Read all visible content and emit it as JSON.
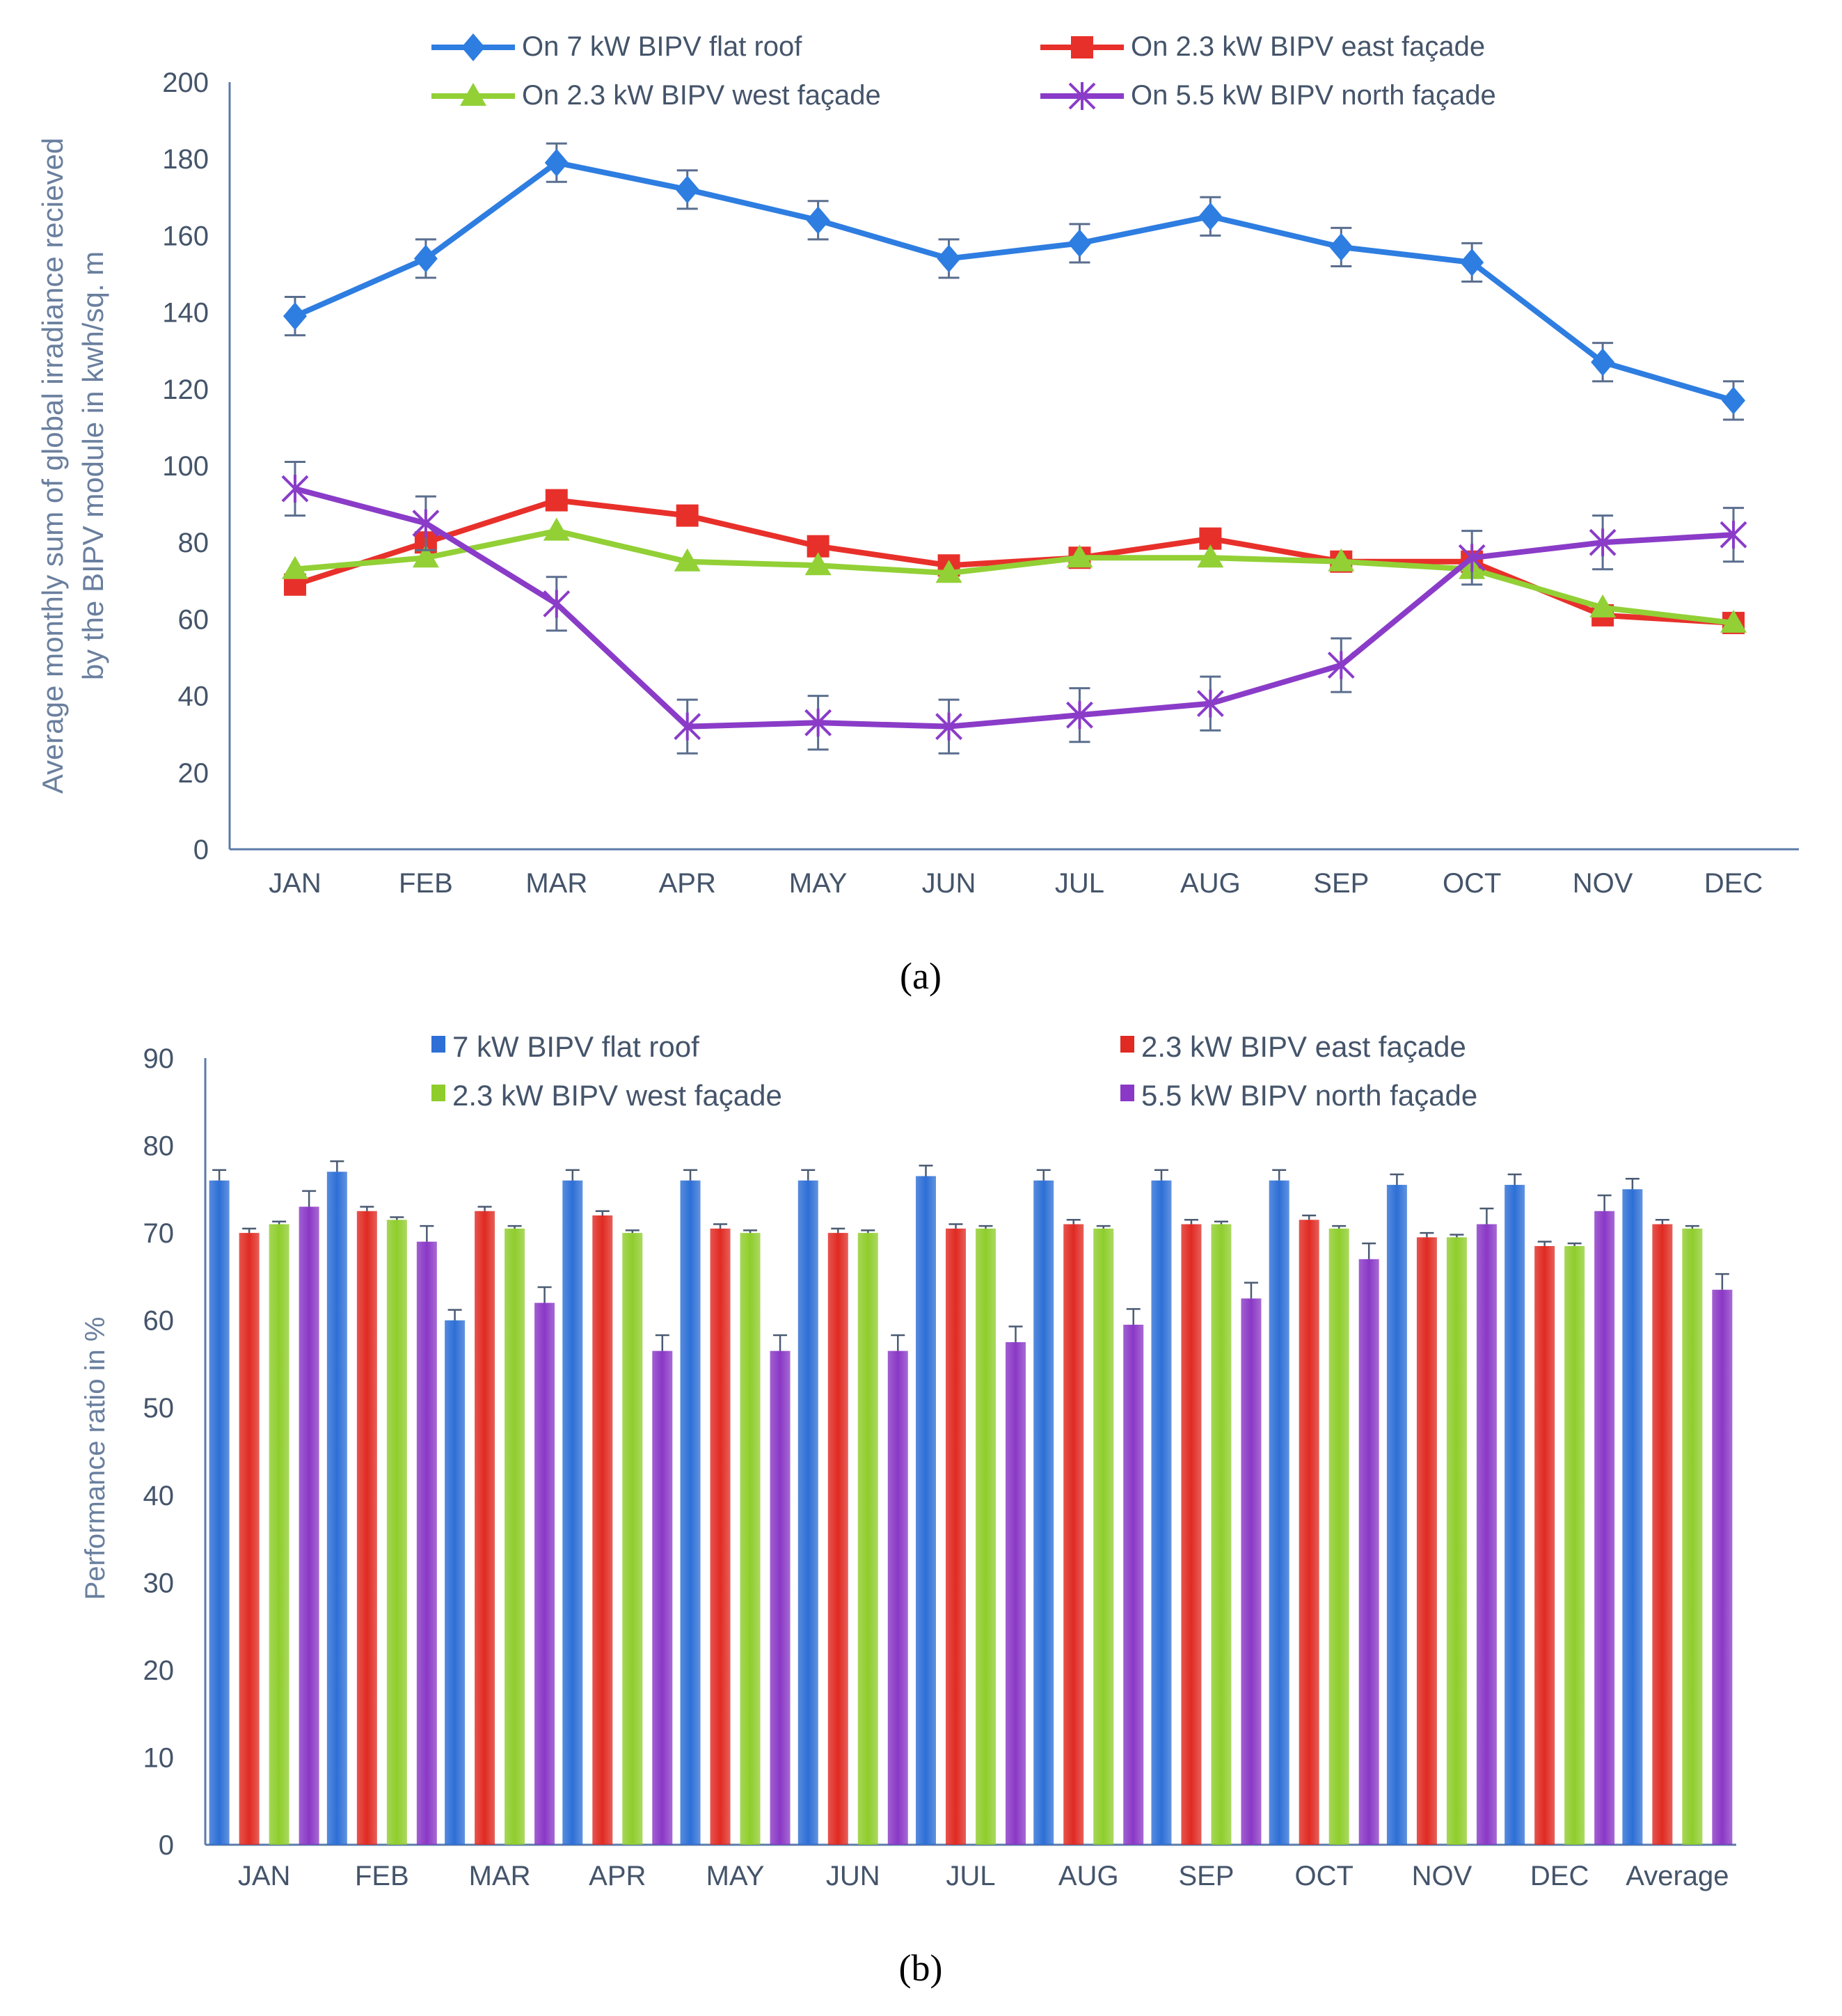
{
  "figure": {
    "panel_a_label": "(a)",
    "panel_b_label": "(b)"
  },
  "chart_data": [
    {
      "type": "line",
      "title": "",
      "xlabel": "",
      "ylabel": "Average monthly sum of global irradiance recieved by the BIPV module in kwh/sq. m",
      "ylabel_lines": [
        "Average monthly sum of global irradiance recieved",
        "by the BIPV module in kwh/sq. m"
      ],
      "ylim": [
        0,
        200
      ],
      "yticks": [
        0,
        20,
        40,
        60,
        80,
        100,
        120,
        140,
        160,
        180,
        200
      ],
      "categories": [
        "JAN",
        "FEB",
        "MAR",
        "APR",
        "MAY",
        "JUN",
        "JUL",
        "AUG",
        "SEP",
        "OCT",
        "NOV",
        "DEC"
      ],
      "grid": false,
      "legend_position": "top",
      "series": [
        {
          "name": "On 7 kW BIPV flat roof",
          "color": "#2e7de1",
          "marker": "diamond",
          "values": [
            139,
            154,
            179,
            172,
            164,
            154,
            158,
            165,
            157,
            153,
            127,
            117
          ],
          "error": [
            5,
            5,
            5,
            5,
            5,
            5,
            5,
            5,
            5,
            5,
            5,
            5
          ]
        },
        {
          "name": "On 2.3 kW BIPV east façade",
          "color": "#e8302b",
          "marker": "square",
          "values": [
            69,
            80,
            91,
            87,
            79,
            74,
            76,
            81,
            75,
            75,
            61,
            59
          ],
          "error": null
        },
        {
          "name": "On 2.3 kW BIPV west façade",
          "color": "#92d036",
          "marker": "triangle",
          "values": [
            73,
            76,
            83,
            75,
            74,
            72,
            76,
            76,
            75,
            73,
            63,
            59
          ],
          "error": null
        },
        {
          "name": "On 5.5 kW BIPV north façade",
          "color": "#8a3cc8",
          "marker": "x",
          "values": [
            94,
            85,
            64,
            32,
            33,
            32,
            35,
            38,
            48,
            76,
            80,
            82
          ],
          "error": [
            7,
            7,
            7,
            7,
            7,
            7,
            7,
            7,
            7,
            7,
            7,
            7
          ]
        }
      ]
    },
    {
      "type": "bar",
      "title": "",
      "xlabel": "",
      "ylabel": "Performance ratio in %",
      "ylim": [
        0,
        90
      ],
      "yticks": [
        0,
        10,
        20,
        30,
        40,
        50,
        60,
        70,
        80,
        90
      ],
      "categories": [
        "JAN",
        "FEB",
        "MAR",
        "APR",
        "MAY",
        "JUN",
        "JUL",
        "AUG",
        "SEP",
        "OCT",
        "NOV",
        "DEC",
        "Average"
      ],
      "grid": false,
      "legend_position": "top",
      "series": [
        {
          "name": "7 kW BIPV flat roof",
          "color": "#2d6fd6",
          "values": [
            76,
            77,
            60,
            76,
            76,
            76,
            76.5,
            76,
            76,
            76,
            75.5,
            75.5,
            75
          ],
          "error": [
            1.2,
            1.2,
            1.2,
            1.2,
            1.2,
            1.2,
            1.2,
            1.2,
            1.2,
            1.2,
            1.2,
            1.2,
            1.2
          ]
        },
        {
          "name": "2.3 kW BIPV east façade",
          "color": "#e02a22",
          "values": [
            70,
            72.5,
            72.5,
            72,
            70.5,
            70,
            70.5,
            71,
            71,
            71.5,
            69.5,
            68.5,
            71
          ],
          "error": [
            0.5,
            0.5,
            0.5,
            0.5,
            0.5,
            0.5,
            0.5,
            0.5,
            0.5,
            0.5,
            0.5,
            0.5,
            0.5
          ]
        },
        {
          "name": "2.3 kW BIPV west façade",
          "color": "#8fcd2c",
          "values": [
            71,
            71.5,
            70.5,
            70,
            70,
            70,
            70.5,
            70.5,
            71,
            70.5,
            69.5,
            68.5,
            70.5
          ],
          "error": [
            0.3,
            0.3,
            0.3,
            0.3,
            0.3,
            0.3,
            0.3,
            0.3,
            0.3,
            0.3,
            0.3,
            0.3,
            0.3
          ]
        },
        {
          "name": "5.5 kW BIPV north façade",
          "color": "#8a38c6",
          "values": [
            73,
            69,
            62,
            56.5,
            56.5,
            56.5,
            57.5,
            59.5,
            62.5,
            67,
            71,
            72.5,
            63.5
          ],
          "error": [
            1.8,
            1.8,
            1.8,
            1.8,
            1.8,
            1.8,
            1.8,
            1.8,
            1.8,
            1.8,
            1.8,
            1.8,
            1.8
          ]
        }
      ]
    }
  ]
}
